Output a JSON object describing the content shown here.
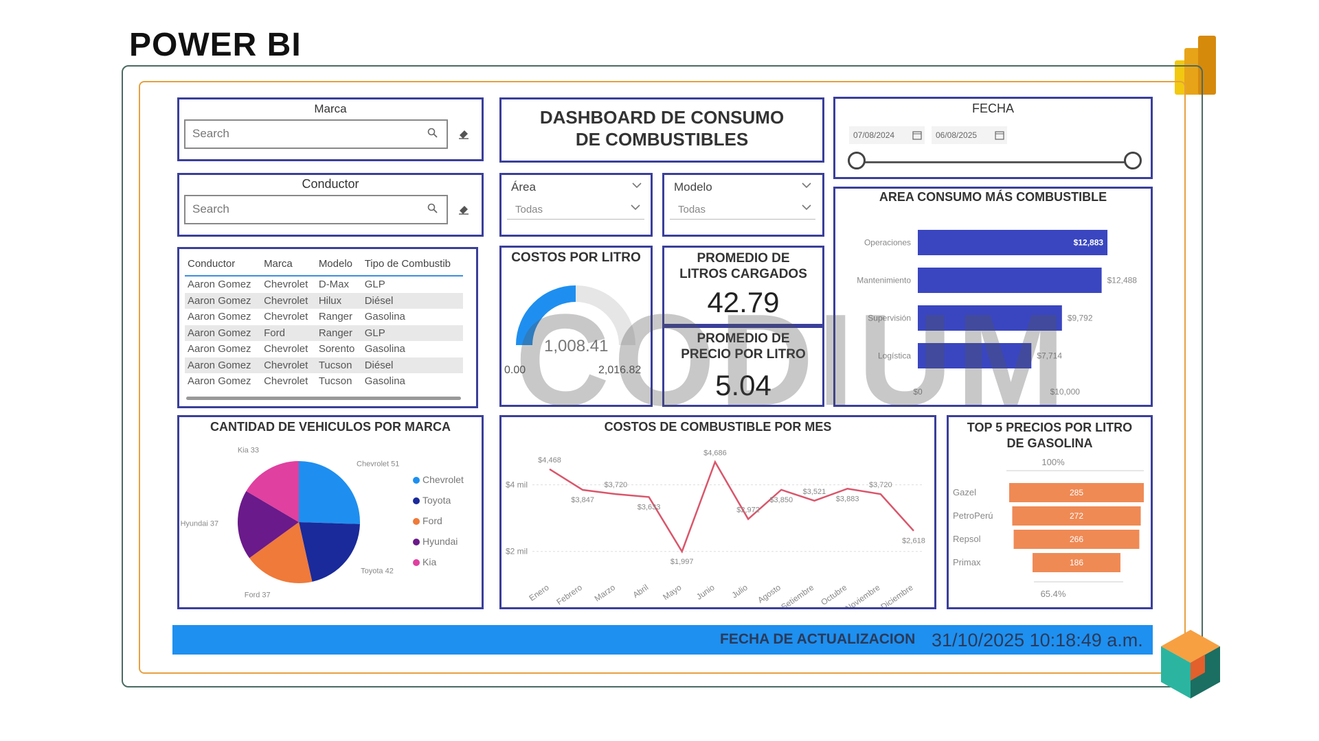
{
  "page_title": "POWER BI",
  "colors": {
    "accent": "#3a3f9a",
    "blue": "#1e90f0",
    "orange": "#ef8a55",
    "gauge": "#1e8ff0",
    "bar": "#3a46c0",
    "line": "#d9566b"
  },
  "filters": {
    "marca": {
      "title": "Marca",
      "placeholder": "Search",
      "icon": "search-icon",
      "clear_icon": "eraser-icon"
    },
    "conductor": {
      "title": "Conductor",
      "placeholder": "Search",
      "icon": "search-icon",
      "clear_icon": "eraser-icon"
    },
    "area": {
      "label": "Área",
      "value": "Todas"
    },
    "modelo": {
      "label": "Modelo",
      "value": "Todas"
    }
  },
  "dashboard_title": "DASHBOARD DE CONSUMO DE COMBUSTIBLES",
  "fecha": {
    "title": "FECHA",
    "start": "07/08/2024",
    "end": "06/08/2025",
    "calendar_icon": "calendar-icon",
    "range": [
      0,
      1
    ]
  },
  "table": {
    "headers": [
      "Conductor",
      "Marca",
      "Modelo",
      "Tipo de Combustib"
    ],
    "rows": [
      [
        "Aaron Gomez",
        "Chevrolet",
        "D-Max",
        "GLP"
      ],
      [
        "Aaron Gomez",
        "Chevrolet",
        "Hilux",
        "Diésel"
      ],
      [
        "Aaron Gomez",
        "Chevrolet",
        "Ranger",
        "Gasolina"
      ],
      [
        "Aaron Gomez",
        "Ford",
        "Ranger",
        "GLP"
      ],
      [
        "Aaron Gomez",
        "Chevrolet",
        "Sorento",
        "Gasolina"
      ],
      [
        "Aaron Gomez",
        "Chevrolet",
        "Tucson",
        "Diésel"
      ],
      [
        "Aaron Gomez",
        "Chevrolet",
        "Tucson",
        "Gasolina"
      ]
    ]
  },
  "kpis": {
    "costos_por_litro": {
      "title": "COSTOS POR LITRO",
      "value": "1,008.41",
      "min": "0.00",
      "max": "2,016.82",
      "fraction": 0.5
    },
    "promedio_litros": {
      "title": "PROMEDIO DE LITROS CARGADOS",
      "value": "42.79"
    },
    "promedio_precio": {
      "title": "PROMEDIO DE PRECIO POR LITRO",
      "value": "5.04"
    }
  },
  "chart_data": [
    {
      "type": "bar",
      "orientation": "horizontal",
      "title": "AREA CONSUMO MÁS COMBUSTIBLE",
      "categories": [
        "Operaciones",
        "Mantenimiento",
        "Supervisión",
        "Logística"
      ],
      "values": [
        12883,
        12488,
        9792,
        7714
      ],
      "value_labels": [
        "$12,883",
        "$12,488",
        "$9,792",
        "$7,714"
      ],
      "xlim": [
        0,
        14000
      ],
      "ticks": [
        {
          "value": 0,
          "label": "$0"
        },
        {
          "value": 10000,
          "label": "$10,000"
        }
      ]
    },
    {
      "type": "pie",
      "title": "CANTIDAD DE VEHICULOS POR MARCA",
      "categories": [
        "Chevrolet",
        "Toyota",
        "Ford",
        "Hyundai",
        "Kia"
      ],
      "values": [
        51,
        42,
        37,
        37,
        33
      ],
      "colors": [
        "#1e8ff0",
        "#1a2a9a",
        "#ef7a3a",
        "#6a1a8a",
        "#e040a0"
      ],
      "slice_labels": [
        "Chevrolet 51",
        "Toyota 42",
        "Ford 37",
        "Hyundai 37",
        "Kia 33"
      ],
      "legend": "right"
    },
    {
      "type": "line",
      "title": "COSTOS DE COMBUSTIBLE POR MES",
      "categories": [
        "Enero",
        "Febrero",
        "Marzo",
        "Abril",
        "Mayo",
        "Junio",
        "Julio",
        "Agosto",
        "Setiembre",
        "Octubre",
        "Noviembre",
        "Diciembre"
      ],
      "values": [
        4468,
        3847,
        3720,
        3633,
        1997,
        4686,
        2972,
        3850,
        3521,
        3883,
        3720,
        2618
      ],
      "value_labels": [
        "$4,468",
        "$3,847",
        "$3,720",
        "$3,633",
        "$1,997",
        "$4,686",
        "$2,972",
        "$3,850",
        "$3,521",
        "$3,883",
        "$3,720",
        "$2,618"
      ],
      "ylim": [
        1500,
        5000
      ],
      "yticks": [
        {
          "value": 2000,
          "label": "$2 mil"
        },
        {
          "value": 4000,
          "label": "$4 mil"
        }
      ],
      "grid": true
    },
    {
      "type": "bar",
      "orientation": "funnel",
      "title": "TOP 5 PRECIOS POR LITRO DE GASOLINA",
      "categories": [
        "Gazel",
        "PetroPerú",
        "Repsol",
        "Primax"
      ],
      "values": [
        285,
        272,
        266,
        186
      ],
      "top_label": "100%",
      "bottom_label": "65.4%"
    }
  ],
  "footer": {
    "label": "FECHA DE ACTUALIZACION",
    "value": "31/10/2025 10:18:49 a.m."
  },
  "watermark": {
    "text": "CODIUM"
  }
}
